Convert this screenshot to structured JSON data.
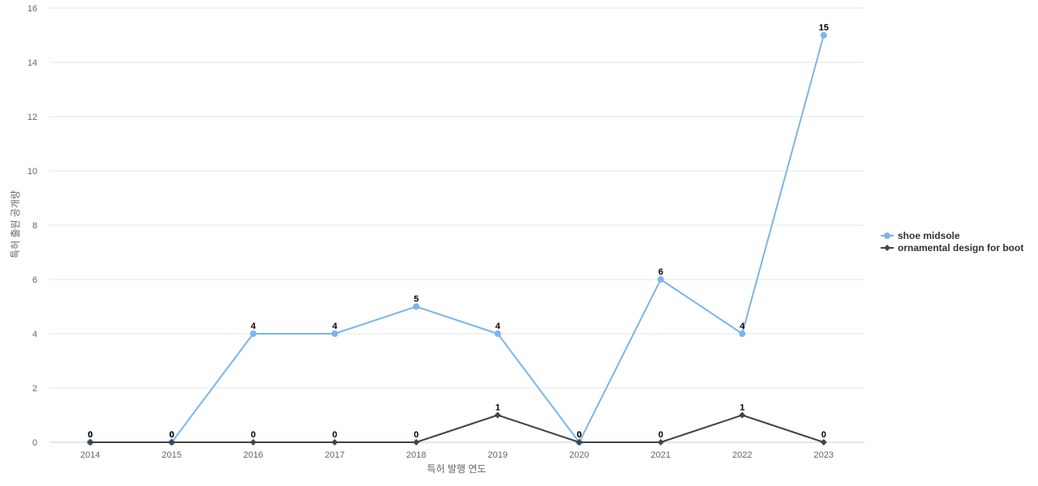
{
  "chart_data": {
    "type": "line",
    "title": "",
    "xlabel": "특허 발행 연도",
    "ylabel": "특허 출원 공개량",
    "x": [
      "2014",
      "2015",
      "2016",
      "2017",
      "2018",
      "2019",
      "2020",
      "2021",
      "2022",
      "2023"
    ],
    "ylim": [
      0,
      16
    ],
    "yticks": [
      0,
      2,
      4,
      6,
      8,
      10,
      12,
      14,
      16
    ],
    "grid": true,
    "legend_position": "right",
    "series": [
      {
        "name": "shoe midsole",
        "values": [
          0,
          0,
          4,
          4,
          5,
          4,
          0,
          6,
          4,
          15
        ],
        "color": "#7cb5ec",
        "marker": "circle"
      },
      {
        "name": "ornamental design for boot",
        "values": [
          0,
          0,
          0,
          0,
          0,
          1,
          0,
          0,
          1,
          0
        ],
        "color": "#434348",
        "marker": "diamond"
      }
    ]
  }
}
